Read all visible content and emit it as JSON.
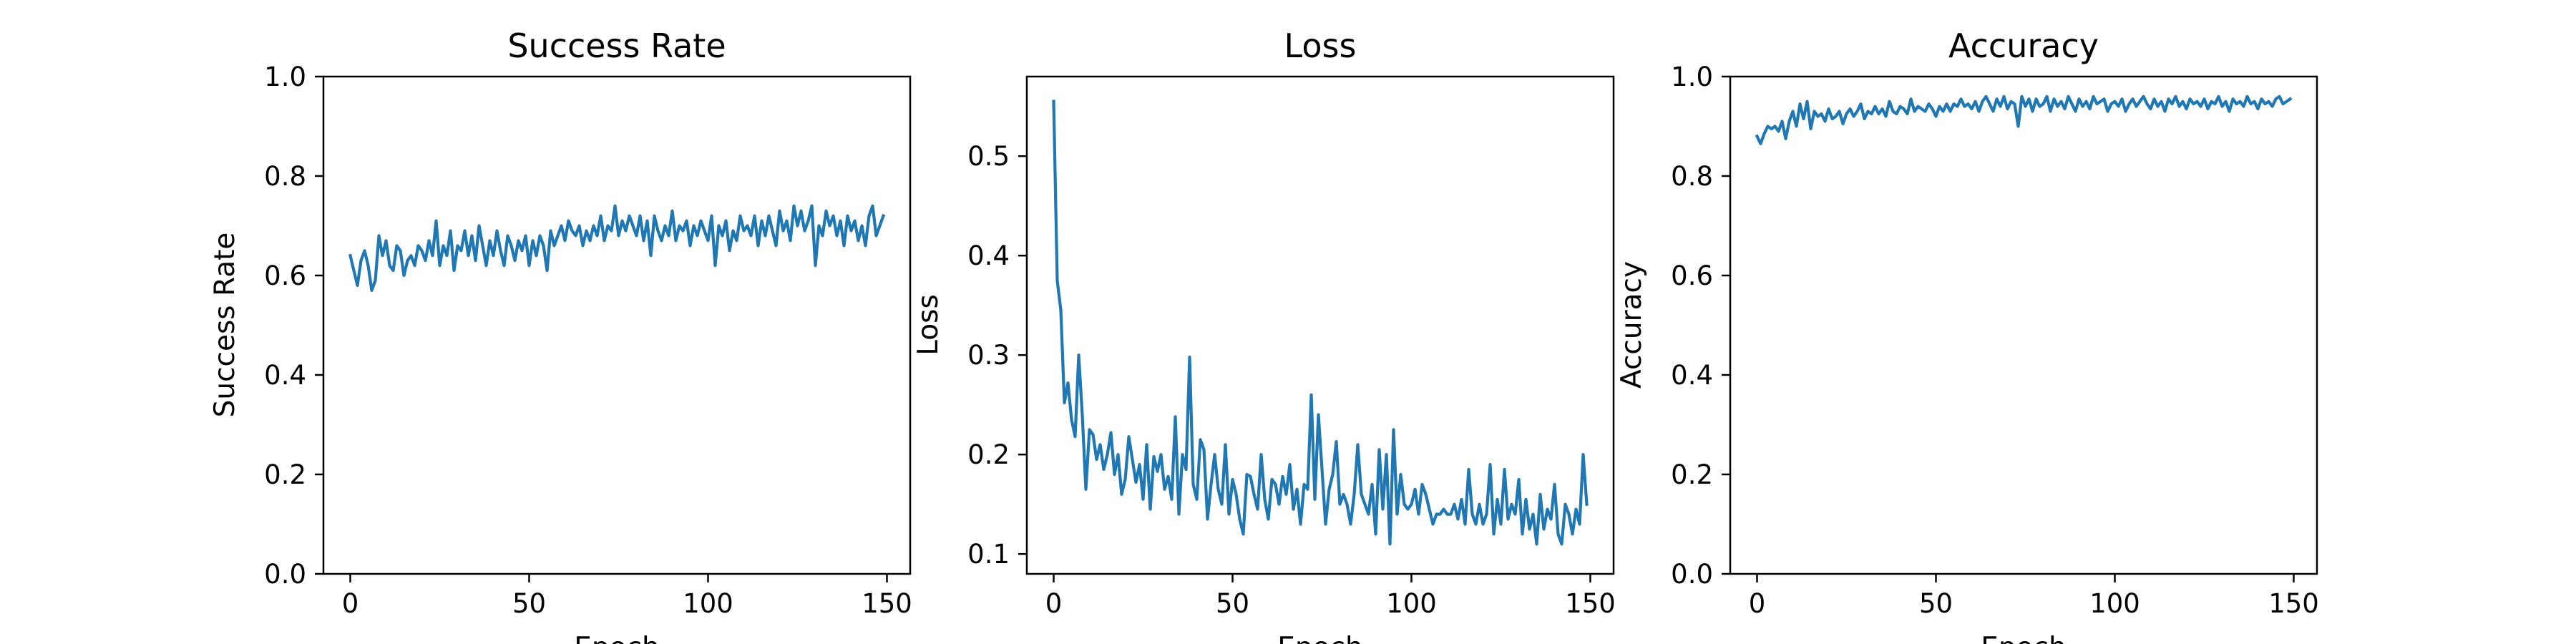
{
  "chart_data": [
    {
      "type": "line",
      "title": "Success Rate",
      "xlabel": "Epoch",
      "ylabel": "Success Rate",
      "xlim": [
        -7.5,
        156.5
      ],
      "ylim": [
        0,
        1
      ],
      "xticks": [
        0,
        50,
        100,
        150
      ],
      "yticks": [
        0.0,
        0.2,
        0.4,
        0.6,
        0.8,
        1.0
      ],
      "ytick_labels": [
        "0.0",
        "0.2",
        "0.4",
        "0.6",
        "0.8",
        "1.0"
      ],
      "grid": false,
      "series": [
        {
          "color": "#1f77b4",
          "x": [
            0,
            1,
            2,
            3,
            4,
            5,
            6,
            7,
            8,
            9,
            10,
            11,
            12,
            13,
            14,
            15,
            16,
            17,
            18,
            19,
            20,
            21,
            22,
            23,
            24,
            25,
            26,
            27,
            28,
            29,
            30,
            31,
            32,
            33,
            34,
            35,
            36,
            37,
            38,
            39,
            40,
            41,
            42,
            43,
            44,
            45,
            46,
            47,
            48,
            49,
            50,
            51,
            52,
            53,
            54,
            55,
            56,
            57,
            58,
            59,
            60,
            61,
            62,
            63,
            64,
            65,
            66,
            67,
            68,
            69,
            70,
            71,
            72,
            73,
            74,
            75,
            76,
            77,
            78,
            79,
            80,
            81,
            82,
            83,
            84,
            85,
            86,
            87,
            88,
            89,
            90,
            91,
            92,
            93,
            94,
            95,
            96,
            97,
            98,
            99,
            100,
            101,
            102,
            103,
            104,
            105,
            106,
            107,
            108,
            109,
            110,
            111,
            112,
            113,
            114,
            115,
            116,
            117,
            118,
            119,
            120,
            121,
            122,
            123,
            124,
            125,
            126,
            127,
            128,
            129,
            130,
            131,
            132,
            133,
            134,
            135,
            136,
            137,
            138,
            139,
            140,
            141,
            142,
            143,
            144,
            145,
            146,
            147,
            148,
            149
          ],
          "y": [
            0.64,
            0.61,
            0.58,
            0.63,
            0.65,
            0.62,
            0.57,
            0.59,
            0.68,
            0.64,
            0.67,
            0.62,
            0.61,
            0.66,
            0.65,
            0.6,
            0.63,
            0.64,
            0.62,
            0.66,
            0.65,
            0.63,
            0.67,
            0.64,
            0.71,
            0.62,
            0.66,
            0.64,
            0.69,
            0.61,
            0.66,
            0.65,
            0.69,
            0.64,
            0.68,
            0.63,
            0.7,
            0.66,
            0.62,
            0.67,
            0.64,
            0.69,
            0.65,
            0.62,
            0.68,
            0.66,
            0.63,
            0.67,
            0.65,
            0.68,
            0.62,
            0.67,
            0.64,
            0.68,
            0.66,
            0.61,
            0.69,
            0.66,
            0.68,
            0.7,
            0.67,
            0.71,
            0.69,
            0.68,
            0.7,
            0.66,
            0.69,
            0.67,
            0.7,
            0.68,
            0.72,
            0.67,
            0.7,
            0.69,
            0.74,
            0.68,
            0.71,
            0.69,
            0.72,
            0.7,
            0.68,
            0.72,
            0.67,
            0.71,
            0.64,
            0.72,
            0.69,
            0.67,
            0.7,
            0.68,
            0.73,
            0.67,
            0.7,
            0.69,
            0.71,
            0.66,
            0.7,
            0.68,
            0.71,
            0.69,
            0.67,
            0.72,
            0.62,
            0.7,
            0.68,
            0.71,
            0.65,
            0.69,
            0.67,
            0.72,
            0.69,
            0.7,
            0.68,
            0.72,
            0.66,
            0.71,
            0.68,
            0.72,
            0.69,
            0.66,
            0.73,
            0.69,
            0.71,
            0.67,
            0.74,
            0.7,
            0.73,
            0.69,
            0.71,
            0.74,
            0.62,
            0.7,
            0.68,
            0.73,
            0.7,
            0.72,
            0.68,
            0.71,
            0.66,
            0.72,
            0.69,
            0.71,
            0.67,
            0.7,
            0.66,
            0.72,
            0.74,
            0.68,
            0.7,
            0.72
          ]
        }
      ]
    },
    {
      "type": "line",
      "title": "Loss",
      "xlabel": "Epoch",
      "ylabel": "Loss",
      "xlim": [
        -7.5,
        156.5
      ],
      "ylim": [
        0.08,
        0.58
      ],
      "xticks": [
        0,
        50,
        100,
        150
      ],
      "yticks": [
        0.1,
        0.2,
        0.3,
        0.4,
        0.5
      ],
      "ytick_labels": [
        "0.1",
        "0.2",
        "0.3",
        "0.4",
        "0.5"
      ],
      "grid": false,
      "series": [
        {
          "color": "#1f77b4",
          "x": [
            0,
            1,
            2,
            3,
            4,
            5,
            6,
            7,
            8,
            9,
            10,
            11,
            12,
            13,
            14,
            15,
            16,
            17,
            18,
            19,
            20,
            21,
            22,
            23,
            24,
            25,
            26,
            27,
            28,
            29,
            30,
            31,
            32,
            33,
            34,
            35,
            36,
            37,
            38,
            39,
            40,
            41,
            42,
            43,
            44,
            45,
            46,
            47,
            48,
            49,
            50,
            51,
            52,
            53,
            54,
            55,
            56,
            57,
            58,
            59,
            60,
            61,
            62,
            63,
            64,
            65,
            66,
            67,
            68,
            69,
            70,
            71,
            72,
            73,
            74,
            75,
            76,
            77,
            78,
            79,
            80,
            81,
            82,
            83,
            84,
            85,
            86,
            87,
            88,
            89,
            90,
            91,
            92,
            93,
            94,
            95,
            96,
            97,
            98,
            99,
            100,
            101,
            102,
            103,
            104,
            105,
            106,
            107,
            108,
            109,
            110,
            111,
            112,
            113,
            114,
            115,
            116,
            117,
            118,
            119,
            120,
            121,
            122,
            123,
            124,
            125,
            126,
            127,
            128,
            129,
            130,
            131,
            132,
            133,
            134,
            135,
            136,
            137,
            138,
            139,
            140,
            141,
            142,
            143,
            144,
            145,
            146,
            147,
            148,
            149
          ],
          "y": [
            0.555,
            0.375,
            0.345,
            0.252,
            0.272,
            0.235,
            0.218,
            0.3,
            0.24,
            0.165,
            0.225,
            0.22,
            0.195,
            0.21,
            0.185,
            0.2,
            0.222,
            0.18,
            0.2,
            0.16,
            0.175,
            0.218,
            0.195,
            0.172,
            0.19,
            0.155,
            0.21,
            0.145,
            0.198,
            0.183,
            0.2,
            0.165,
            0.178,
            0.155,
            0.238,
            0.14,
            0.2,
            0.185,
            0.298,
            0.17,
            0.155,
            0.215,
            0.205,
            0.135,
            0.17,
            0.2,
            0.165,
            0.15,
            0.21,
            0.14,
            0.175,
            0.16,
            0.135,
            0.12,
            0.18,
            0.178,
            0.16,
            0.145,
            0.2,
            0.155,
            0.135,
            0.175,
            0.17,
            0.15,
            0.178,
            0.16,
            0.19,
            0.145,
            0.165,
            0.13,
            0.17,
            0.165,
            0.26,
            0.155,
            0.24,
            0.185,
            0.13,
            0.165,
            0.18,
            0.213,
            0.15,
            0.16,
            0.15,
            0.13,
            0.16,
            0.21,
            0.16,
            0.15,
            0.14,
            0.17,
            0.12,
            0.205,
            0.145,
            0.2,
            0.11,
            0.225,
            0.14,
            0.18,
            0.15,
            0.145,
            0.15,
            0.165,
            0.14,
            0.17,
            0.16,
            0.145,
            0.13,
            0.14,
            0.14,
            0.145,
            0.14,
            0.14,
            0.15,
            0.135,
            0.155,
            0.13,
            0.185,
            0.14,
            0.13,
            0.15,
            0.13,
            0.14,
            0.19,
            0.12,
            0.155,
            0.13,
            0.185,
            0.135,
            0.15,
            0.14,
            0.175,
            0.12,
            0.155,
            0.125,
            0.14,
            0.11,
            0.16,
            0.125,
            0.145,
            0.135,
            0.17,
            0.12,
            0.11,
            0.15,
            0.14,
            0.12,
            0.145,
            0.13,
            0.2,
            0.15
          ]
        }
      ]
    },
    {
      "type": "line",
      "title": "Accuracy",
      "xlabel": "Epoch",
      "ylabel": "Accuracy",
      "xlim": [
        -7.5,
        156.5
      ],
      "ylim": [
        0,
        1
      ],
      "xticks": [
        0,
        50,
        100,
        150
      ],
      "yticks": [
        0.0,
        0.2,
        0.4,
        0.6,
        0.8,
        1.0
      ],
      "ytick_labels": [
        "0.0",
        "0.2",
        "0.4",
        "0.6",
        "0.8",
        "1.0"
      ],
      "grid": false,
      "series": [
        {
          "color": "#1f77b4",
          "x": [
            0,
            1,
            2,
            3,
            4,
            5,
            6,
            7,
            8,
            9,
            10,
            11,
            12,
            13,
            14,
            15,
            16,
            17,
            18,
            19,
            20,
            21,
            22,
            23,
            24,
            25,
            26,
            27,
            28,
            29,
            30,
            31,
            32,
            33,
            34,
            35,
            36,
            37,
            38,
            39,
            40,
            41,
            42,
            43,
            44,
            45,
            46,
            47,
            48,
            49,
            50,
            51,
            52,
            53,
            54,
            55,
            56,
            57,
            58,
            59,
            60,
            61,
            62,
            63,
            64,
            65,
            66,
            67,
            68,
            69,
            70,
            71,
            72,
            73,
            74,
            75,
            76,
            77,
            78,
            79,
            80,
            81,
            82,
            83,
            84,
            85,
            86,
            87,
            88,
            89,
            90,
            91,
            92,
            93,
            94,
            95,
            96,
            97,
            98,
            99,
            100,
            101,
            102,
            103,
            104,
            105,
            106,
            107,
            108,
            109,
            110,
            111,
            112,
            113,
            114,
            115,
            116,
            117,
            118,
            119,
            120,
            121,
            122,
            123,
            124,
            125,
            126,
            127,
            128,
            129,
            130,
            131,
            132,
            133,
            134,
            135,
            136,
            137,
            138,
            139,
            140,
            141,
            142,
            143,
            144,
            145,
            146,
            147,
            148,
            149
          ],
          "y": [
            0.88,
            0.865,
            0.885,
            0.9,
            0.895,
            0.9,
            0.89,
            0.91,
            0.875,
            0.91,
            0.93,
            0.9,
            0.945,
            0.915,
            0.95,
            0.895,
            0.93,
            0.92,
            0.925,
            0.91,
            0.935,
            0.915,
            0.92,
            0.93,
            0.905,
            0.925,
            0.935,
            0.92,
            0.93,
            0.945,
            0.915,
            0.93,
            0.925,
            0.94,
            0.925,
            0.935,
            0.92,
            0.95,
            0.93,
            0.925,
            0.94,
            0.935,
            0.925,
            0.955,
            0.93,
            0.94,
            0.935,
            0.93,
            0.945,
            0.935,
            0.92,
            0.94,
            0.93,
            0.945,
            0.93,
            0.945,
            0.94,
            0.955,
            0.94,
            0.945,
            0.935,
            0.95,
            0.93,
            0.95,
            0.96,
            0.945,
            0.93,
            0.955,
            0.94,
            0.96,
            0.935,
            0.95,
            0.945,
            0.9,
            0.96,
            0.94,
            0.955,
            0.93,
            0.955,
            0.94,
            0.945,
            0.96,
            0.93,
            0.955,
            0.94,
            0.95,
            0.935,
            0.96,
            0.945,
            0.93,
            0.955,
            0.94,
            0.95,
            0.935,
            0.96,
            0.945,
            0.95,
            0.955,
            0.93,
            0.945,
            0.95,
            0.94,
            0.955,
            0.93,
            0.945,
            0.955,
            0.94,
            0.95,
            0.96,
            0.945,
            0.935,
            0.955,
            0.94,
            0.95,
            0.93,
            0.955,
            0.945,
            0.96,
            0.94,
            0.95,
            0.935,
            0.955,
            0.945,
            0.95,
            0.94,
            0.955,
            0.935,
            0.95,
            0.945,
            0.96,
            0.94,
            0.95,
            0.93,
            0.955,
            0.945,
            0.95,
            0.94,
            0.96,
            0.945,
            0.95,
            0.935,
            0.955,
            0.945,
            0.95,
            0.94,
            0.955,
            0.96,
            0.945,
            0.95,
            0.955
          ]
        }
      ]
    }
  ]
}
